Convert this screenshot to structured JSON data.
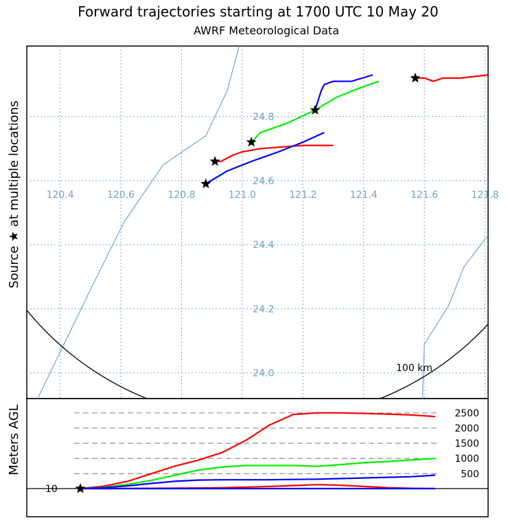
{
  "chart_data": {
    "type": "line",
    "title": "Forward trajectories starting at 1700 UTC 10 May 20",
    "subtitle": "AWRF Meteorological Data",
    "map_panel": {
      "ylabel": "Source ★ at multiple locations",
      "xlim": [
        120.29,
        121.81
      ],
      "ylim": [
        23.92,
        25.02
      ],
      "lon_ticks": [
        "120.4",
        "120.6",
        "120.8",
        "121.0",
        "121.2",
        "121.4",
        "121.6",
        "121.8"
      ],
      "lat_ticks": [
        "24.0",
        "24.2",
        "24.4",
        "24.6",
        "24.8"
      ],
      "range_ring_label": "100 km",
      "range_ring": {
        "center": [
          121.07,
          24.75
        ],
        "radius_km": 100
      },
      "coastlines": [
        [
          [
            120.29,
            23.85
          ],
          [
            120.5,
            24.26
          ],
          [
            120.61,
            24.47
          ],
          [
            120.74,
            24.65
          ],
          [
            120.88,
            24.74
          ],
          [
            120.95,
            24.88
          ],
          [
            120.99,
            25.02
          ]
        ],
        [
          [
            121.59,
            23.82
          ],
          [
            121.6,
            24.09
          ],
          [
            121.68,
            24.21
          ],
          [
            121.73,
            24.33
          ],
          [
            121.81,
            24.43
          ]
        ]
      ],
      "sources": [
        [
          120.88,
          24.59
        ],
        [
          120.91,
          24.66
        ],
        [
          121.03,
          24.72
        ],
        [
          121.24,
          24.82
        ],
        [
          121.57,
          24.92
        ]
      ],
      "series": [
        {
          "color": "#ff0000",
          "points": [
            [
              120.91,
              24.66
            ],
            [
              120.93,
              24.66
            ],
            [
              120.97,
              24.68
            ],
            [
              121.0,
              24.69
            ],
            [
              121.06,
              24.7
            ],
            [
              121.2,
              24.71
            ],
            [
              121.3,
              24.71
            ]
          ]
        },
        {
          "color": "#0000ff",
          "points": [
            [
              120.88,
              24.59
            ],
            [
              120.95,
              24.63
            ],
            [
              121.03,
              24.66
            ],
            [
              121.12,
              24.69
            ],
            [
              121.2,
              24.72
            ],
            [
              121.27,
              24.75
            ]
          ]
        },
        {
          "color": "#00ee00",
          "points": [
            [
              121.03,
              24.72
            ],
            [
              121.06,
              24.75
            ],
            [
              121.15,
              24.78
            ],
            [
              121.24,
              24.82
            ],
            [
              121.31,
              24.86
            ],
            [
              121.39,
              24.89
            ],
            [
              121.45,
              24.91
            ]
          ]
        },
        {
          "color": "#0000ff",
          "points": [
            [
              121.24,
              24.82
            ],
            [
              121.26,
              24.88
            ],
            [
              121.27,
              24.9
            ],
            [
              121.3,
              24.91
            ],
            [
              121.36,
              24.91
            ],
            [
              121.43,
              24.93
            ]
          ]
        },
        {
          "color": "#ff0000",
          "points": [
            [
              121.57,
              24.92
            ],
            [
              121.6,
              24.92
            ],
            [
              121.63,
              24.91
            ],
            [
              121.66,
              24.92
            ],
            [
              121.72,
              24.92
            ],
            [
              121.81,
              24.93
            ]
          ]
        }
      ]
    },
    "altitude_panel": {
      "ylabel": "Meters AGL",
      "start_label": "10",
      "ticks": [
        "2500",
        "2000",
        "1500",
        "1000",
        "500"
      ],
      "tick_values": [
        2500,
        2000,
        1500,
        1000,
        500
      ],
      "ylim": [
        0,
        2700
      ],
      "hours": 24,
      "series": [
        {
          "color": "#ff0000",
          "values": [
            10,
            90,
            250,
            500,
            750,
            950,
            1200,
            1600,
            2100,
            2450,
            2500,
            2500,
            2480,
            2460,
            2430,
            2380
          ]
        },
        {
          "color": "#00ee00",
          "values": [
            10,
            50,
            150,
            280,
            450,
            620,
            720,
            770,
            770,
            770,
            740,
            800,
            860,
            900,
            950,
            1000
          ]
        },
        {
          "color": "#0000ff",
          "values": [
            10,
            40,
            100,
            180,
            250,
            290,
            300,
            300,
            300,
            310,
            320,
            340,
            360,
            380,
            400,
            450
          ]
        },
        {
          "color": "#ff0000",
          "values": [
            10,
            10,
            15,
            20,
            25,
            30,
            40,
            60,
            80,
            110,
            140,
            120,
            80,
            40,
            20,
            10
          ]
        },
        {
          "color": "#0000ff",
          "values": [
            10,
            10,
            10,
            10,
            10,
            10,
            10,
            10,
            10,
            10,
            10,
            10,
            10,
            10,
            10,
            10
          ]
        }
      ]
    }
  }
}
